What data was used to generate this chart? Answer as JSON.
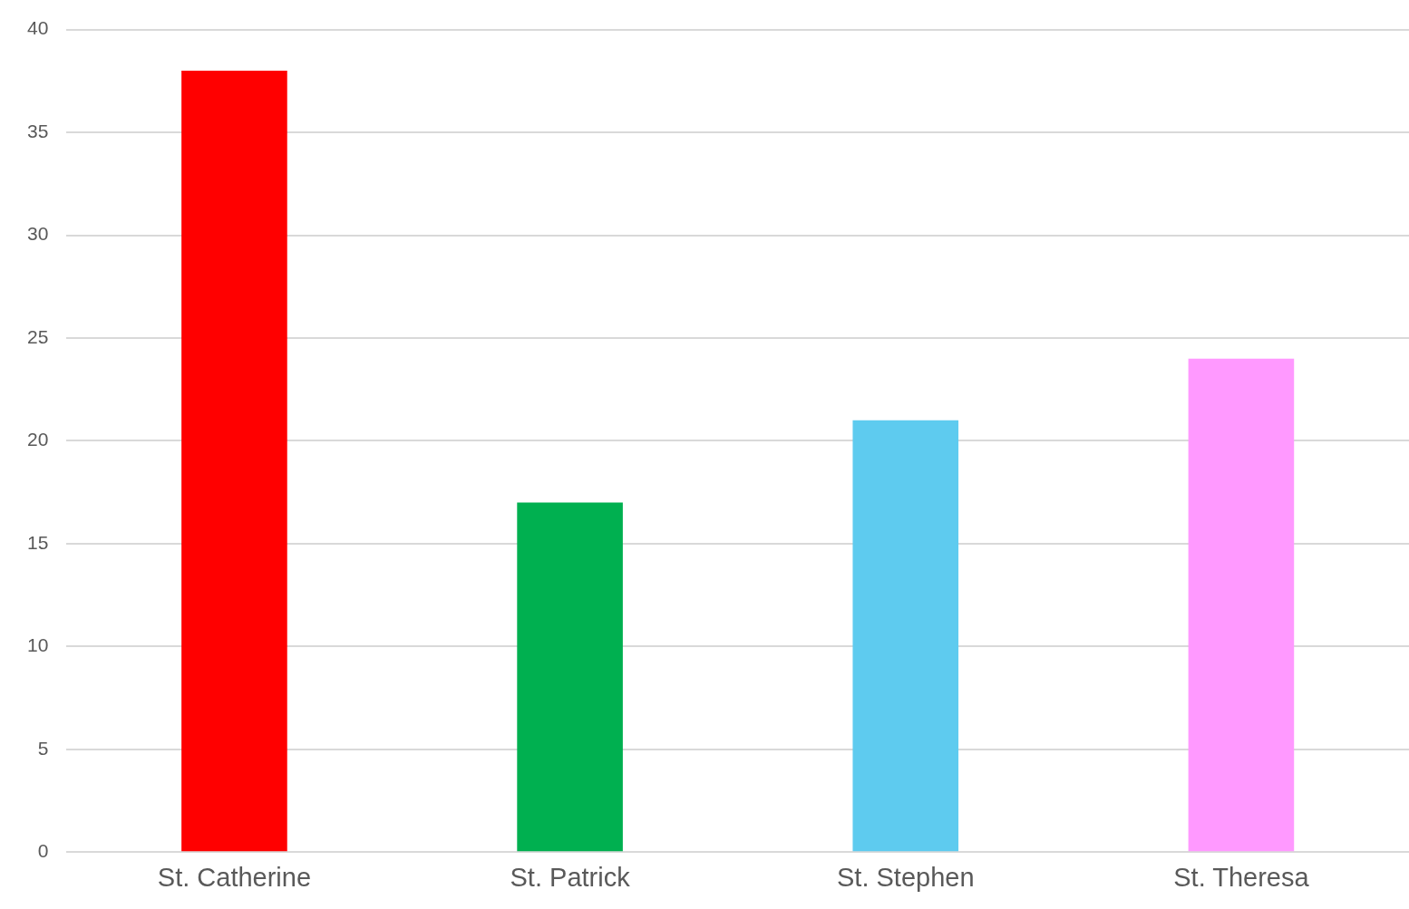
{
  "chart_data": {
    "type": "bar",
    "categories": [
      "St. Catherine",
      "St. Patrick",
      "St. Stephen",
      "St. Theresa"
    ],
    "values": [
      38,
      17,
      21,
      24
    ],
    "colors": [
      "#ff0000",
      "#00b050",
      "#5ecbef",
      "#ff99ff"
    ],
    "ylim": [
      0,
      40
    ],
    "yticks": [
      0,
      5,
      10,
      15,
      20,
      25,
      30,
      35,
      40
    ],
    "grid": "y",
    "legend": false
  }
}
